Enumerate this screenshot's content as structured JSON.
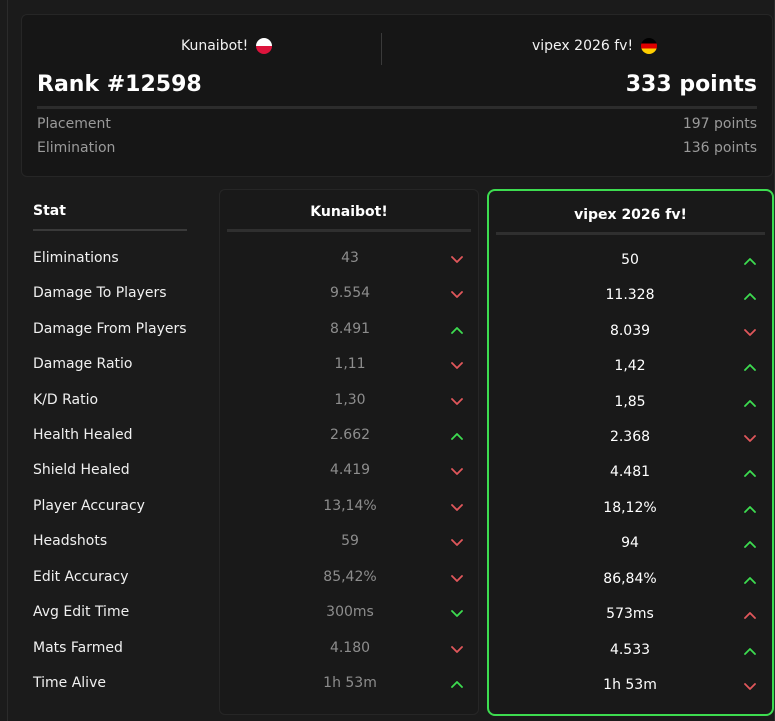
{
  "summary": {
    "player1": {
      "name": "Kunaibot!",
      "flag": "flag-poland-icon"
    },
    "player2": {
      "name": "vipex 2026 fv!",
      "flag": "flag-germany-icon"
    },
    "rank": "Rank #12598",
    "points": "333 points",
    "placement_label": "Placement",
    "placement_value": "197 points",
    "elimination_label": "Elimination",
    "elimination_value": "136 points"
  },
  "table": {
    "stat_header": "Stat",
    "player1_header": "Kunaibot!",
    "player2_header": "vipex 2026 fv!",
    "rows": [
      {
        "stat": "Eliminations",
        "p1": "43",
        "p1_trend": "down",
        "p2": "50",
        "p2_trend": "up"
      },
      {
        "stat": "Damage To Players",
        "p1": "9.554",
        "p1_trend": "down",
        "p2": "11.328",
        "p2_trend": "up"
      },
      {
        "stat": "Damage From Players",
        "p1": "8.491",
        "p1_trend": "up",
        "p2": "8.039",
        "p2_trend": "down"
      },
      {
        "stat": "Damage Ratio",
        "p1": "1,11",
        "p1_trend": "down",
        "p2": "1,42",
        "p2_trend": "up"
      },
      {
        "stat": "K/D Ratio",
        "p1": "1,30",
        "p1_trend": "down",
        "p2": "1,85",
        "p2_trend": "up"
      },
      {
        "stat": "Health Healed",
        "p1": "2.662",
        "p1_trend": "up",
        "p2": "2.368",
        "p2_trend": "down"
      },
      {
        "stat": "Shield Healed",
        "p1": "4.419",
        "p1_trend": "down",
        "p2": "4.481",
        "p2_trend": "up"
      },
      {
        "stat": "Player Accuracy",
        "p1": "13,14%",
        "p1_trend": "down",
        "p2": "18,12%",
        "p2_trend": "up"
      },
      {
        "stat": "Headshots",
        "p1": "59",
        "p1_trend": "down",
        "p2": "94",
        "p2_trend": "up"
      },
      {
        "stat": "Edit Accuracy",
        "p1": "85,42%",
        "p1_trend": "down",
        "p2": "86,84%",
        "p2_trend": "up"
      },
      {
        "stat": "Avg Edit Time",
        "p1": "300ms",
        "p1_trend": "down-green",
        "p2": "573ms",
        "p2_trend": "up-red"
      },
      {
        "stat": "Mats Farmed",
        "p1": "4.180",
        "p1_trend": "down",
        "p2": "4.533",
        "p2_trend": "up"
      },
      {
        "stat": "Time Alive",
        "p1": "1h 53m",
        "p1_trend": "up",
        "p2": "1h 53m",
        "p2_trend": "down"
      }
    ]
  },
  "colors": {
    "accent_green": "#3ddc50",
    "arrow_red": "#e0575b",
    "arrow_green": "#3ddc50"
  }
}
